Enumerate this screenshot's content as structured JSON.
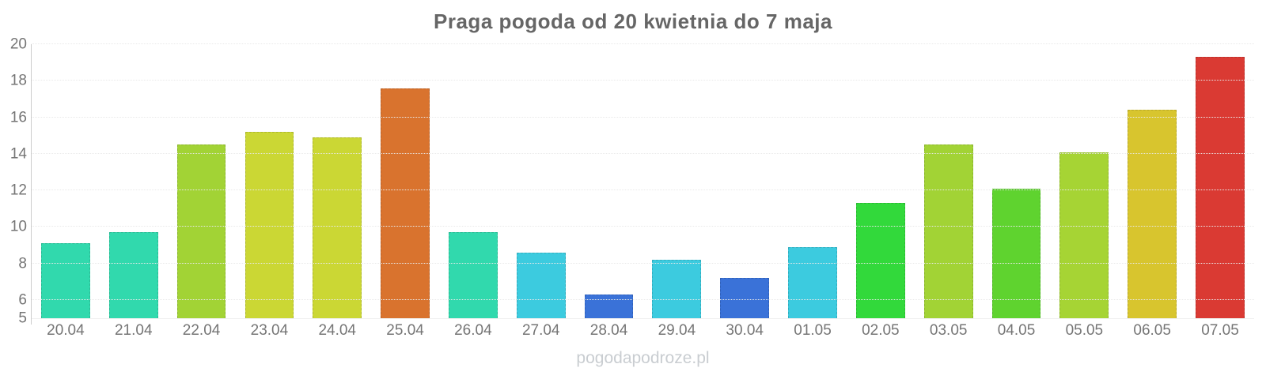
{
  "title": "Praga pogoda od 20 kwietnia do 7 maja",
  "watermark": "pogodapodroze.pl",
  "colors": {
    "title_text": "#666666",
    "tick_text": "#757575",
    "axis_line": "#cccccc",
    "gridline": "#e9e9e9",
    "watermark_text": "#c9cdd1",
    "background": "#ffffff"
  },
  "chart_data": {
    "type": "bar",
    "title": "Praga pogoda od 20 kwietnia do 7 maja",
    "xlabel": "",
    "ylabel": "",
    "ylim": [
      5,
      20
    ],
    "y_ticks": [
      20,
      18,
      16,
      14,
      12,
      10,
      8,
      6,
      5
    ],
    "grid": "horizontal-dotted",
    "legend": "none",
    "categories": [
      "20.04",
      "21.04",
      "22.04",
      "23.04",
      "24.04",
      "25.04",
      "26.04",
      "27.04",
      "28.04",
      "29.04",
      "30.04",
      "01.05",
      "02.05",
      "03.05",
      "04.05",
      "05.05",
      "06.05",
      "07.05"
    ],
    "values": [
      9.1,
      9.7,
      14.5,
      15.2,
      14.9,
      17.6,
      9.7,
      8.6,
      6.3,
      8.2,
      7.2,
      8.9,
      11.3,
      14.5,
      12.1,
      14.1,
      16.4,
      19.3
    ],
    "bar_colors": [
      "#31d9ad",
      "#31d9ad",
      "#a2d335",
      "#cbd734",
      "#cbd734",
      "#d9732e",
      "#31d9ad",
      "#3ccbdf",
      "#3a72d8",
      "#3ccbdf",
      "#3a72d8",
      "#3ccbdf",
      "#32d93b",
      "#a2d335",
      "#5fd32f",
      "#a6d434",
      "#d8c52e",
      "#da3a33"
    ]
  }
}
